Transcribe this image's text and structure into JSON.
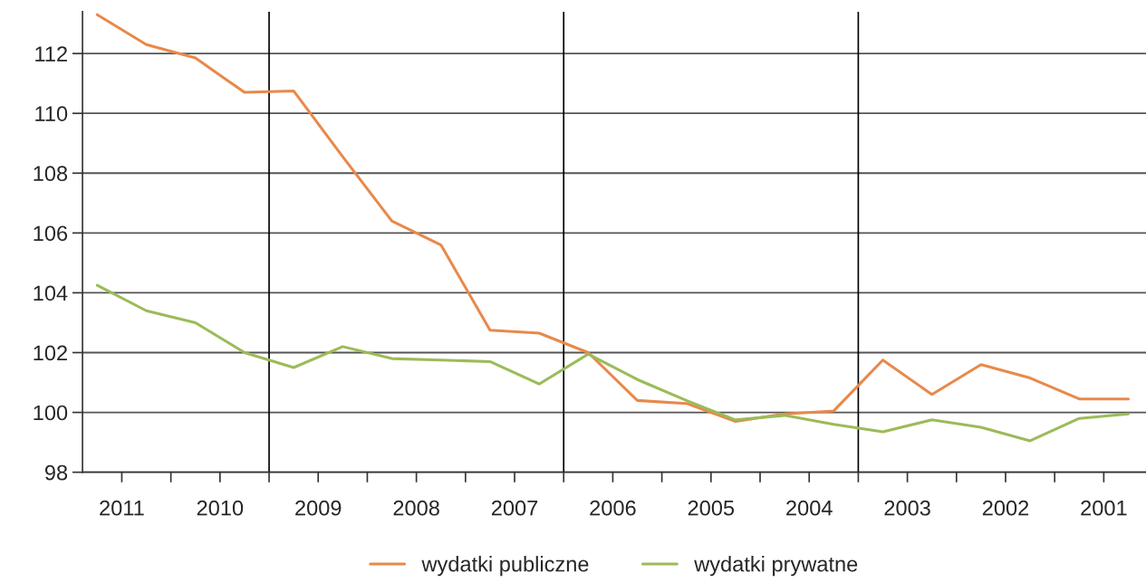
{
  "chart_data": {
    "type": "line",
    "x": [
      2011.25,
      2010.75,
      2010.25,
      2009.75,
      2009.25,
      2008.75,
      2008.25,
      2007.75,
      2007.25,
      2006.75,
      2006.25,
      2005.75,
      2005.25,
      2004.75,
      2004.25,
      2003.75,
      2003.25,
      2002.75,
      2002.25,
      2001.75,
      2001.25,
      2000.75
    ],
    "series": [
      {
        "name": "wydatki publiczne",
        "color": "#e8894a",
        "values": [
          113.3,
          112.3,
          111.85,
          110.7,
          110.75,
          108.55,
          106.4,
          105.6,
          102.75,
          102.65,
          102.0,
          100.4,
          100.3,
          99.7,
          99.95,
          100.05,
          101.75,
          100.6,
          101.6,
          101.15,
          100.45,
          100.45
        ]
      },
      {
        "name": "wydatki prywatne",
        "color": "#9bbb59",
        "values": [
          104.25,
          103.4,
          103.0,
          102.0,
          101.5,
          102.2,
          101.8,
          101.75,
          101.7,
          100.95,
          101.95,
          101.1,
          100.4,
          99.75,
          99.9,
          99.6,
          99.35,
          99.75,
          99.5,
          99.05,
          99.8,
          99.95
        ]
      }
    ],
    "xlim": [
      2011.4,
      2000.57
    ],
    "xticks": [
      2011,
      {
        "value": 2010.5,
        "label": null
      },
      2010,
      {
        "value": 2009.5,
        "label": null
      },
      2009,
      {
        "value": 2008.5,
        "label": null
      },
      2008,
      {
        "value": 2007.5,
        "label": null
      },
      2007,
      {
        "value": 2006.5,
        "label": null
      },
      2006,
      {
        "value": 2005.5,
        "label": null
      },
      2005,
      {
        "value": 2004.5,
        "label": null
      },
      2004,
      {
        "value": 2003.5,
        "label": null
      },
      2003,
      {
        "value": 2002.5,
        "label": null
      },
      2002,
      {
        "value": 2001.5,
        "label": null
      },
      2001
    ],
    "ylim": [
      98,
      113.4
    ],
    "yticks": [
      98,
      100,
      102,
      104,
      106,
      108,
      110,
      112
    ],
    "ref_lines": [
      {
        "axis": "x",
        "value": 2009.5,
        "color": "#000000"
      },
      {
        "axis": "x",
        "value": 2006.5,
        "color": "#000000"
      },
      {
        "axis": "x",
        "value": 2003.5,
        "color": "#000000"
      }
    ],
    "grid": "y",
    "legend": "bottom",
    "marker": "none",
    "line_style": "solid"
  }
}
